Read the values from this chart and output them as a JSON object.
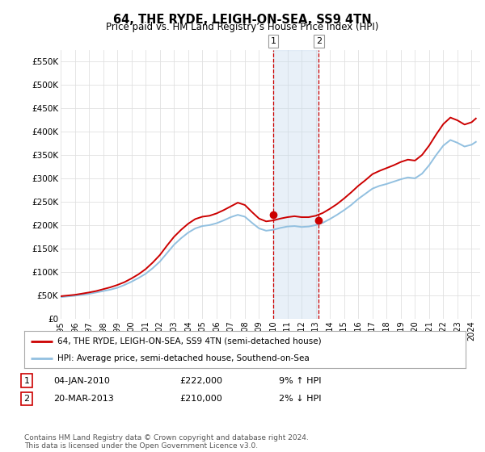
{
  "title": "64, THE RYDE, LEIGH-ON-SEA, SS9 4TN",
  "subtitle": "Price paid vs. HM Land Registry’s House Price Index (HPI)",
  "ylabel_ticks": [
    "£0",
    "£50K",
    "£100K",
    "£150K",
    "£200K",
    "£250K",
    "£300K",
    "£350K",
    "£400K",
    "£450K",
    "£500K",
    "£550K"
  ],
  "yvalues": [
    0,
    50000,
    100000,
    150000,
    200000,
    250000,
    300000,
    350000,
    400000,
    450000,
    500000,
    550000
  ],
  "ylim": [
    0,
    575000
  ],
  "hpi_color": "#92c0e0",
  "price_color": "#cc0000",
  "shade_color": "#c6dbef",
  "marker1_x": 2010.01,
  "marker1_y": 222000,
  "marker2_x": 2013.22,
  "marker2_y": 210000,
  "legend_line1": "64, THE RYDE, LEIGH-ON-SEA, SS9 4TN (semi-detached house)",
  "legend_line2": "HPI: Average price, semi-detached house, Southend-on-Sea",
  "table_row1": [
    "1",
    "04-JAN-2010",
    "£222,000",
    "9% ↑ HPI"
  ],
  "table_row2": [
    "2",
    "20-MAR-2013",
    "£210,000",
    "2% ↓ HPI"
  ],
  "footnote": "Contains HM Land Registry data © Crown copyright and database right 2024.\nThis data is licensed under the Open Government Licence v3.0.",
  "background_color": "#ffffff",
  "grid_color": "#e0e0e0",
  "xlim_left": 1995.0,
  "xlim_right": 2024.6
}
